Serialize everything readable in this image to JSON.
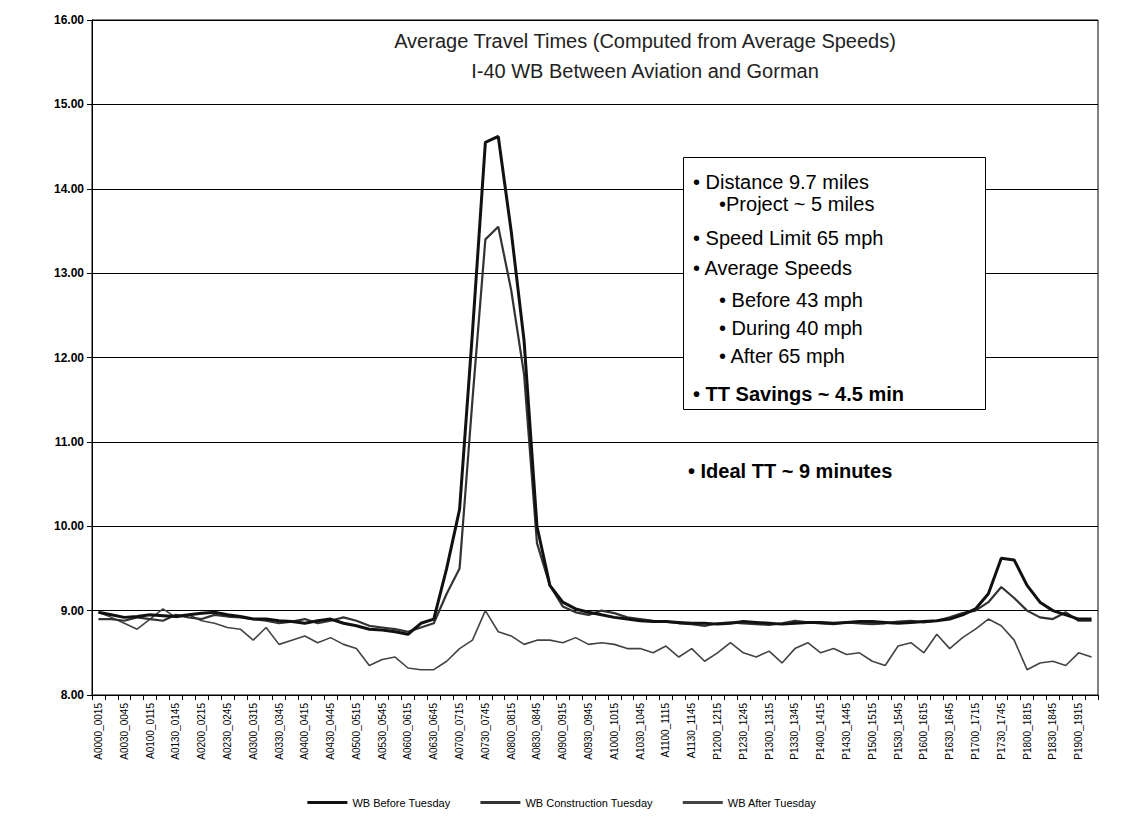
{
  "chart_data": {
    "type": "line",
    "title": [
      "Average Travel Times (Computed from Average Speeds)",
      "I-40 WB Between Aviation and Gorman"
    ],
    "annotations": {
      "box": [
        "• Distance 9.7 miles",
        "•Project ~ 5 miles",
        "• Speed Limit 65 mph",
        "• Average Speeds",
        "• Before 43 mph",
        "• During 40 mph",
        "• After 65 mph",
        "• TT Savings ~ 4.5 min"
      ],
      "note": "• Ideal TT ~ 9 minutes"
    },
    "categories": [
      "A0000_0015",
      null,
      "A0030_0045",
      null,
      "A0100_0115",
      null,
      "A0130_0145",
      null,
      "A0200_0215",
      null,
      "A0230_0245",
      null,
      "A0300_0315",
      null,
      "A0330_0345",
      null,
      "A0400_0415",
      null,
      "A0430_0445",
      null,
      "A0500_0515",
      null,
      "A0530_0545",
      null,
      "A0600_0615",
      null,
      "A0630_0645",
      null,
      "A0700_0715",
      null,
      "A0730_0745",
      null,
      "A0800_0815",
      null,
      "A0830_0845",
      null,
      "A0900_0915",
      null,
      "A0930_0945",
      null,
      "A1000_1015",
      null,
      "A1030_1045",
      null,
      "A1100_1115",
      null,
      "A1130_1145",
      null,
      "P1200_1215",
      null,
      "P1230_1245",
      null,
      "P1300_1315",
      null,
      "P1330_1345",
      null,
      "P1400_1415",
      null,
      "P1430_1445",
      null,
      "P1500_1515",
      null,
      "P1530_1545",
      null,
      "P1600_1615",
      null,
      "P1630_1645",
      null,
      "P1700_1715",
      null,
      "P1730_1745",
      null,
      "P1800_1815",
      null,
      "P1830_1845",
      null,
      "P1900_1915",
      null
    ],
    "series": [
      {
        "name": "WB Before Tuesday",
        "color": "#111111",
        "values": [
          8.98,
          8.95,
          8.92,
          8.93,
          8.95,
          8.94,
          8.93,
          8.95,
          8.97,
          8.98,
          8.95,
          8.93,
          8.9,
          8.9,
          8.88,
          8.87,
          8.85,
          8.88,
          8.9,
          8.85,
          8.82,
          8.78,
          8.77,
          8.75,
          8.72,
          8.85,
          8.9,
          9.5,
          10.2,
          12.3,
          14.55,
          14.62,
          13.5,
          12.2,
          10.0,
          9.3,
          9.1,
          9.02,
          8.98,
          8.95,
          8.92,
          8.9,
          8.88,
          8.87,
          8.87,
          8.86,
          8.85,
          8.85,
          8.84,
          8.85,
          8.87,
          8.86,
          8.85,
          8.84,
          8.85,
          8.86,
          8.86,
          8.85,
          8.86,
          8.87,
          8.87,
          8.86,
          8.85,
          8.86,
          8.87,
          8.88,
          8.9,
          8.95,
          9.02,
          9.2,
          9.62,
          9.6,
          9.3,
          9.1,
          9.0,
          8.95,
          8.9,
          8.9
        ]
      },
      {
        "name": "WB Construction Tuesday",
        "color": "#333333",
        "values": [
          8.9,
          8.9,
          8.88,
          8.92,
          8.9,
          8.88,
          8.95,
          8.92,
          8.9,
          8.95,
          8.93,
          8.92,
          8.9,
          8.88,
          8.85,
          8.87,
          8.9,
          8.85,
          8.88,
          8.92,
          8.88,
          8.82,
          8.8,
          8.78,
          8.75,
          8.8,
          8.85,
          9.2,
          9.5,
          11.5,
          13.4,
          13.55,
          12.8,
          11.8,
          9.8,
          9.3,
          9.05,
          8.98,
          8.95,
          9.0,
          8.97,
          8.92,
          8.9,
          8.88,
          8.87,
          8.85,
          8.84,
          8.82,
          8.85,
          8.86,
          8.85,
          8.84,
          8.83,
          8.85,
          8.88,
          8.86,
          8.85,
          8.84,
          8.86,
          8.85,
          8.84,
          8.85,
          8.87,
          8.88,
          8.86,
          8.88,
          8.92,
          8.97,
          9.0,
          9.1,
          9.28,
          9.15,
          9.0,
          8.92,
          8.9,
          8.98,
          8.88,
          8.88
        ]
      },
      {
        "name": "WB After Tuesday",
        "color": "#444444",
        "values": [
          8.98,
          8.92,
          8.85,
          8.78,
          8.9,
          9.02,
          8.92,
          8.95,
          8.88,
          8.85,
          8.8,
          8.78,
          8.65,
          8.8,
          8.6,
          8.65,
          8.7,
          8.62,
          8.68,
          8.6,
          8.55,
          8.35,
          8.42,
          8.45,
          8.32,
          8.3,
          8.3,
          8.4,
          8.55,
          8.65,
          9.0,
          8.75,
          8.7,
          8.6,
          8.65,
          8.65,
          8.62,
          8.68,
          8.6,
          8.62,
          8.6,
          8.55,
          8.55,
          8.5,
          8.58,
          8.45,
          8.55,
          8.4,
          8.5,
          8.62,
          8.5,
          8.45,
          8.52,
          8.38,
          8.55,
          8.62,
          8.5,
          8.55,
          8.48,
          8.5,
          8.4,
          8.35,
          8.58,
          8.62,
          8.5,
          8.72,
          8.55,
          8.68,
          8.78,
          8.9,
          8.82,
          8.65,
          8.3,
          8.38,
          8.4,
          8.35,
          8.5,
          8.45
        ]
      }
    ],
    "ylim": [
      8,
      16
    ],
    "yticks": [
      {
        "value": 8,
        "label": "8.00"
      },
      {
        "value": 9,
        "label": "9.00"
      },
      {
        "value": 10,
        "label": "10.00"
      },
      {
        "value": 11,
        "label": "11.00"
      },
      {
        "value": 12,
        "label": "12.00"
      },
      {
        "value": 13,
        "label": "13.00"
      },
      {
        "value": 14,
        "label": "14.00"
      },
      {
        "value": 15,
        "label": "15.00"
      },
      {
        "value": 16,
        "label": "16.00"
      }
    ],
    "grid": true,
    "legend": "bottom"
  }
}
